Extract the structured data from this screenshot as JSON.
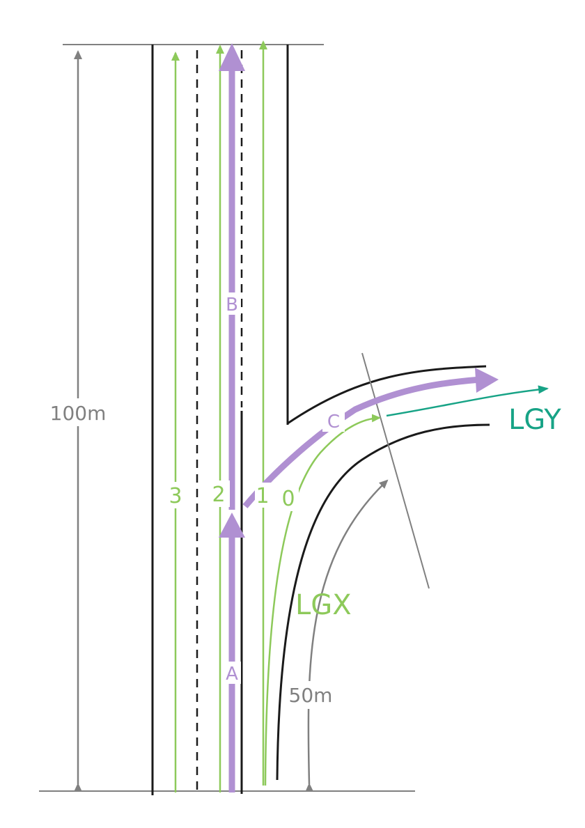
{
  "colors": {
    "road": "#1a1a1a",
    "dimension": "#808080",
    "lane": "#8dc95a",
    "link": "#b090d2",
    "lgy": "#17a386"
  },
  "dimensions": {
    "main": "100m",
    "ramp": "50m"
  },
  "lanes": [
    "3",
    "2",
    "1",
    "0"
  ],
  "links": {
    "a": "A",
    "b": "B",
    "c": "C"
  },
  "lane_groups": {
    "lgx": "LGX",
    "lgy": "LGY"
  }
}
